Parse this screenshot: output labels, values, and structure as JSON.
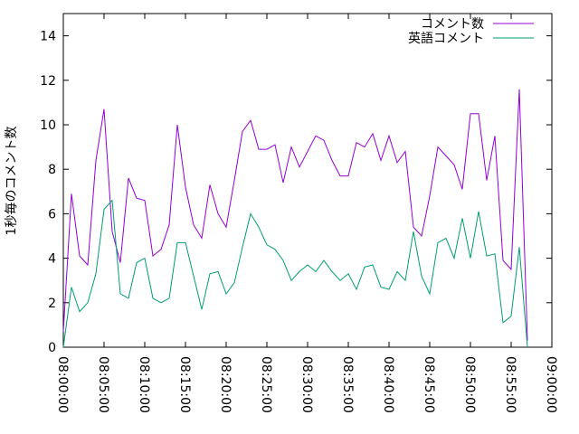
{
  "chart_data": {
    "type": "line",
    "y_label": "1秒毎のコメント数",
    "x": [
      "08:00:00",
      "08:01:00",
      "08:02:00",
      "08:03:00",
      "08:04:00",
      "08:05:00",
      "08:06:00",
      "08:07:00",
      "08:08:00",
      "08:09:00",
      "08:10:00",
      "08:11:00",
      "08:12:00",
      "08:13:00",
      "08:14:00",
      "08:15:00",
      "08:16:00",
      "08:17:00",
      "08:18:00",
      "08:19:00",
      "08:20:00",
      "08:21:00",
      "08:22:00",
      "08:23:00",
      "08:24:00",
      "08:25:00",
      "08:26:00",
      "08:27:00",
      "08:28:00",
      "08:29:00",
      "08:30:00",
      "08:31:00",
      "08:32:00",
      "08:33:00",
      "08:34:00",
      "08:35:00",
      "08:36:00",
      "08:37:00",
      "08:38:00",
      "08:39:00",
      "08:40:00",
      "08:41:00",
      "08:42:00",
      "08:43:00",
      "08:44:00",
      "08:45:00",
      "08:46:00",
      "08:47:00",
      "08:48:00",
      "08:49:00",
      "08:50:00",
      "08:51:00",
      "08:52:00",
      "08:53:00",
      "08:54:00",
      "08:55:00",
      "08:56:00",
      "08:57:00"
    ],
    "series": [
      {
        "name": "コメント数",
        "color": "#9400d3",
        "values": [
          0.7,
          6.9,
          4.1,
          3.7,
          8.4,
          10.7,
          5.2,
          3.8,
          7.6,
          6.7,
          6.6,
          4.1,
          4.4,
          5.5,
          10.0,
          7.2,
          5.5,
          4.9,
          7.3,
          6.0,
          5.4,
          7.5,
          9.7,
          10.2,
          8.9,
          8.9,
          9.1,
          7.4,
          9.0,
          8.1,
          8.8,
          9.5,
          9.3,
          8.4,
          7.7,
          7.7,
          9.2,
          9.0,
          9.6,
          8.4,
          9.5,
          8.3,
          8.8,
          5.4,
          5.0,
          6.8,
          9.0,
          8.6,
          8.2,
          7.1,
          10.5,
          10.5,
          7.5,
          9.5,
          3.9,
          3.5,
          11.6,
          0.3
        ]
      },
      {
        "name": "英語コメント",
        "color": "#009e73",
        "values": [
          0,
          2.7,
          1.6,
          2.0,
          3.3,
          6.2,
          6.6,
          2.4,
          2.2,
          3.8,
          4.0,
          2.2,
          2.0,
          2.2,
          4.7,
          4.7,
          3.2,
          1.7,
          3.3,
          3.4,
          2.4,
          2.9,
          4.5,
          6.0,
          5.4,
          4.6,
          4.4,
          3.9,
          3.0,
          3.4,
          3.7,
          3.4,
          3.9,
          3.4,
          3.0,
          3.3,
          2.6,
          3.6,
          3.7,
          2.7,
          2.6,
          3.4,
          3.0,
          5.2,
          3.2,
          2.4,
          4.7,
          4.9,
          4.0,
          5.8,
          4.0,
          6.1,
          4.1,
          4.2,
          1.1,
          1.4,
          4.5,
          0
        ]
      }
    ],
    "xlim": [
      "08:00:00",
      "09:00:00"
    ],
    "xticks": [
      "08:00:00",
      "08:05:00",
      "08:10:00",
      "08:15:00",
      "08:20:00",
      "08:25:00",
      "08:30:00",
      "08:35:00",
      "08:40:00",
      "08:45:00",
      "08:50:00",
      "08:55:00",
      "09:00:00"
    ],
    "ylim": [
      0,
      15
    ],
    "yticks": [
      0,
      2,
      4,
      6,
      8,
      10,
      12,
      14
    ],
    "legend": "top-right"
  }
}
